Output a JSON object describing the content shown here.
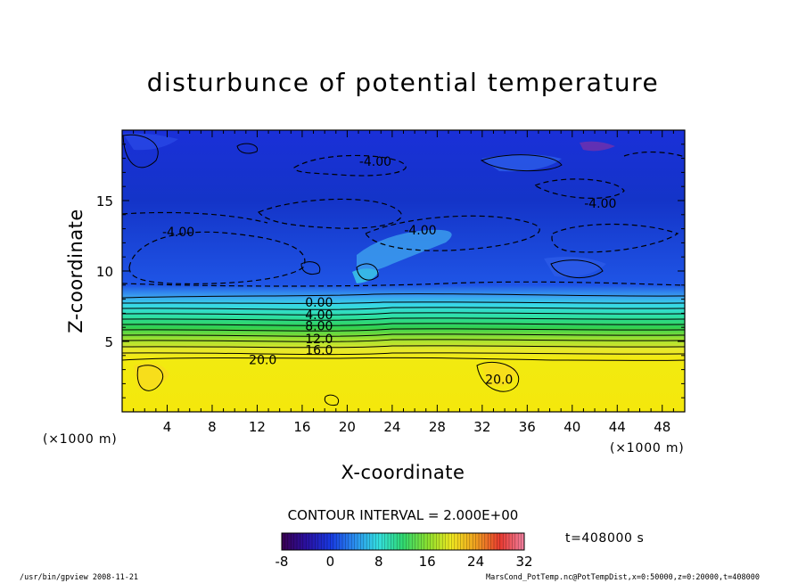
{
  "chart_data": {
    "type": "heatmap",
    "title": "disturbunce of potential temperature",
    "xlabel": "X-coordinate",
    "ylabel": "Z-coordinate",
    "x_unit": "(×1000 m)",
    "y_unit": "(×1000 m)",
    "xlim": [
      0,
      50
    ],
    "ylim": [
      0,
      20
    ],
    "x_ticks": [
      4,
      8,
      12,
      16,
      20,
      24,
      28,
      32,
      36,
      40,
      44,
      48
    ],
    "y_ticks": [
      5,
      10,
      15
    ],
    "contour_interval_text": "CONTOUR INTERVAL = 2.000E+00",
    "time_text": "t=408000 s",
    "colorbar": {
      "ticks": [
        -8,
        0,
        8,
        16,
        24,
        32
      ],
      "range": [
        -8,
        32
      ]
    },
    "contour_labels": [
      {
        "text": "-4.00",
        "x": 22.5,
        "z": 17.8
      },
      {
        "text": "-4.00",
        "x": 42.5,
        "z": 14.8
      },
      {
        "text": "-4.00",
        "x": 26.5,
        "z": 12.9
      },
      {
        "text": "-4.00",
        "x": 5.0,
        "z": 12.8
      },
      {
        "text": "0.00",
        "x": 17.5,
        "z": 7.8
      },
      {
        "text": "4.00",
        "x": 17.5,
        "z": 6.9
      },
      {
        "text": "8.00",
        "x": 17.5,
        "z": 6.1
      },
      {
        "text": "12.0",
        "x": 17.5,
        "z": 5.2
      },
      {
        "text": "16.0",
        "x": 17.5,
        "z": 4.4
      },
      {
        "text": "20.0",
        "x": 12.5,
        "z": 3.7
      },
      {
        "text": "20.0",
        "x": 33.5,
        "z": 2.3
      }
    ],
    "profile_by_height": [
      {
        "z": 0.5,
        "value": 21
      },
      {
        "z": 3.5,
        "value": 20
      },
      {
        "z": 4.5,
        "value": 16
      },
      {
        "z": 5.5,
        "value": 11
      },
      {
        "z": 6.5,
        "value": 6
      },
      {
        "z": 7.5,
        "value": 1
      },
      {
        "z": 9.0,
        "value": -3
      },
      {
        "z": 12.0,
        "value": -4
      },
      {
        "z": 16.0,
        "value": -3.5
      },
      {
        "z": 19.5,
        "value": -3
      }
    ]
  },
  "footer": {
    "left": "/usr/bin/gpview   2008-11-21",
    "right": "MarsCond_PotTemp.nc@PotTempDist,x=0:50000,z=0:20000,t=408000"
  }
}
